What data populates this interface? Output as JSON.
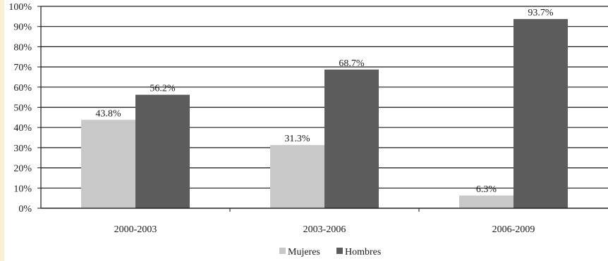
{
  "chart_data": {
    "type": "bar",
    "categories": [
      "2000-2003",
      "2003-2006",
      "2006-2009"
    ],
    "series": [
      {
        "name": "Mujeres",
        "values": [
          43.8,
          31.3,
          6.3
        ],
        "labels": [
          "43.8%",
          "31.3%",
          "6.3%"
        ],
        "color": "#c8c8c8"
      },
      {
        "name": "Hombres",
        "values": [
          56.2,
          68.7,
          93.7
        ],
        "labels": [
          "56.2%",
          "68.7%",
          "93.7%"
        ],
        "color": "#5c5c5c"
      }
    ],
    "y_ticks": [
      "0%",
      "10%",
      "20%",
      "30%",
      "40%",
      "50%",
      "60%",
      "70%",
      "80%",
      "90%",
      "100%"
    ],
    "ylim": [
      0,
      100
    ],
    "grid": true,
    "legend_position": "bottom-center",
    "title": "",
    "xlabel": "",
    "ylabel": ""
  }
}
